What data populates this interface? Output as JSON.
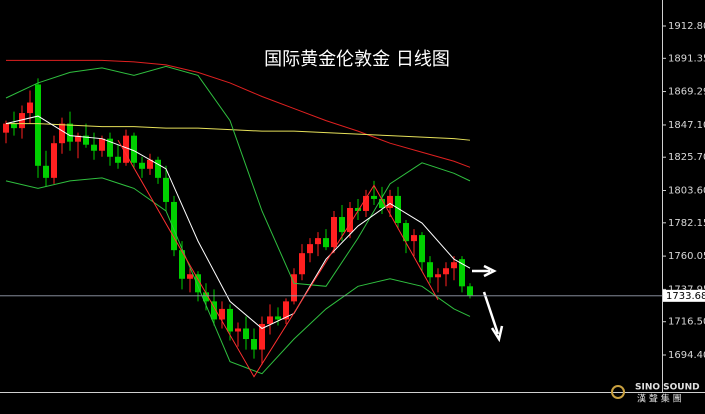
{
  "chart_data": {
    "type": "candlestick",
    "title": "国际黄金伦敦金  日线图",
    "up_color": "#ff2020",
    "down_color": "#00d000",
    "open": [
      1842,
      1848,
      1845,
      1855,
      1874,
      1820,
      1812,
      1835,
      1848,
      1836,
      1840,
      1834,
      1830,
      1838,
      1826,
      1822,
      1840,
      1822,
      1818,
      1824,
      1812,
      1796,
      1764,
      1745,
      1748,
      1736,
      1730,
      1718,
      1725,
      1710,
      1712,
      1705,
      1698,
      1715,
      1720,
      1718,
      1730,
      1748,
      1762,
      1768,
      1772,
      1766,
      1786,
      1776,
      1792,
      1790,
      1800,
      1798,
      1792,
      1800,
      1782,
      1770,
      1774,
      1756,
      1746,
      1748,
      1752,
      1758,
      1740
    ],
    "high": [
      1850,
      1856,
      1860,
      1870,
      1878,
      1830,
      1840,
      1852,
      1856,
      1842,
      1848,
      1842,
      1840,
      1842,
      1834,
      1844,
      1842,
      1826,
      1828,
      1826,
      1820,
      1800,
      1770,
      1752,
      1750,
      1742,
      1738,
      1730,
      1728,
      1716,
      1720,
      1712,
      1720,
      1728,
      1726,
      1732,
      1752,
      1768,
      1772,
      1776,
      1778,
      1790,
      1794,
      1796,
      1798,
      1804,
      1810,
      1806,
      1804,
      1806,
      1784,
      1778,
      1776,
      1760,
      1752,
      1756,
      1760,
      1760,
      1742
    ],
    "low": [
      1835,
      1840,
      1838,
      1848,
      1812,
      1806,
      1808,
      1828,
      1830,
      1825,
      1832,
      1824,
      1826,
      1820,
      1818,
      1820,
      1818,
      1812,
      1814,
      1808,
      1790,
      1760,
      1738,
      1736,
      1730,
      1724,
      1714,
      1712,
      1704,
      1700,
      1698,
      1692,
      1688,
      1708,
      1714,
      1715,
      1728,
      1744,
      1756,
      1760,
      1764,
      1762,
      1770,
      1772,
      1784,
      1786,
      1794,
      1788,
      1786,
      1778,
      1762,
      1760,
      1750,
      1742,
      1736,
      1740,
      1744,
      1736,
      1732
    ],
    "close": [
      1848,
      1845,
      1855,
      1862,
      1820,
      1812,
      1835,
      1848,
      1836,
      1840,
      1834,
      1830,
      1838,
      1826,
      1822,
      1840,
      1822,
      1818,
      1824,
      1812,
      1796,
      1764,
      1745,
      1748,
      1736,
      1730,
      1718,
      1725,
      1710,
      1712,
      1705,
      1698,
      1715,
      1720,
      1718,
      1730,
      1748,
      1762,
      1768,
      1772,
      1766,
      1786,
      1776,
      1792,
      1790,
      1800,
      1798,
      1792,
      1800,
      1782,
      1770,
      1774,
      1756,
      1746,
      1748,
      1752,
      1756,
      1740,
      1734
    ],
    "overlays": [
      {
        "color": "#e02020",
        "x": [
          0,
          4,
          8,
          12,
          16,
          20,
          24,
          28,
          32,
          36,
          40,
          44,
          48,
          52,
          56,
          58
        ],
        "values": [
          1890,
          1890,
          1890,
          1890,
          1889,
          1887,
          1882,
          1875,
          1866,
          1858,
          1850,
          1843,
          1835,
          1829,
          1823,
          1819
        ]
      },
      {
        "color": "#e6e05a",
        "x": [
          0,
          4,
          8,
          12,
          16,
          20,
          24,
          28,
          32,
          36,
          40,
          44,
          48,
          52,
          56,
          58
        ],
        "values": [
          1848,
          1848,
          1847,
          1846,
          1846,
          1845,
          1845,
          1844,
          1843,
          1843,
          1842,
          1841,
          1840,
          1839,
          1838,
          1837
        ]
      },
      {
        "color": "#2fbf3f",
        "x": [
          0,
          4,
          8,
          12,
          16,
          20,
          24,
          28,
          32,
          36,
          40,
          44,
          48,
          52,
          56,
          58
        ],
        "values": [
          1865,
          1875,
          1882,
          1885,
          1880,
          1886,
          1880,
          1850,
          1790,
          1742,
          1740,
          1772,
          1808,
          1822,
          1815,
          1810
        ]
      },
      {
        "color": "#2fbf3f",
        "x": [
          0,
          4,
          8,
          12,
          16,
          20,
          24,
          28,
          32,
          36,
          40,
          44,
          48,
          52,
          56,
          58
        ],
        "values": [
          1810,
          1805,
          1810,
          1812,
          1805,
          1790,
          1740,
          1690,
          1682,
          1705,
          1725,
          1740,
          1745,
          1740,
          1725,
          1720
        ]
      },
      {
        "color": "#ffffff",
        "x": [
          0,
          4,
          8,
          12,
          16,
          20,
          24,
          28,
          32,
          36,
          40,
          44,
          48,
          52,
          56,
          58
        ],
        "values": [
          1848,
          1853,
          1840,
          1838,
          1830,
          1818,
          1770,
          1730,
          1712,
          1722,
          1758,
          1780,
          1795,
          1782,
          1758,
          1752
        ]
      },
      {
        "color": "#ff3030",
        "x": [
          14,
          31,
          46,
          54
        ],
        "values": [
          1837,
          1680,
          1807,
          1731
        ]
      }
    ],
    "last_price": 1733.68,
    "ylim": [
      1669.84,
      1930.06
    ],
    "yticks": [
      {
        "value": 1912.8,
        "label": "1912.80"
      },
      1891.35,
      1869.29,
      {
        "value": 1847.1,
        "label": "1847.10"
      },
      {
        "value": 1825.7,
        "label": "1825.70"
      },
      {
        "value": 1803.6,
        "label": "1803.60"
      },
      1782.15,
      1760.05,
      1737.95,
      {
        "value": 1716.5,
        "label": "1716.50"
      },
      {
        "value": 1694.4,
        "label": "1694.40"
      }
    ],
    "watermark": {
      "name": "SINO SOUND",
      "sub": "漢 聲 集 團"
    }
  }
}
